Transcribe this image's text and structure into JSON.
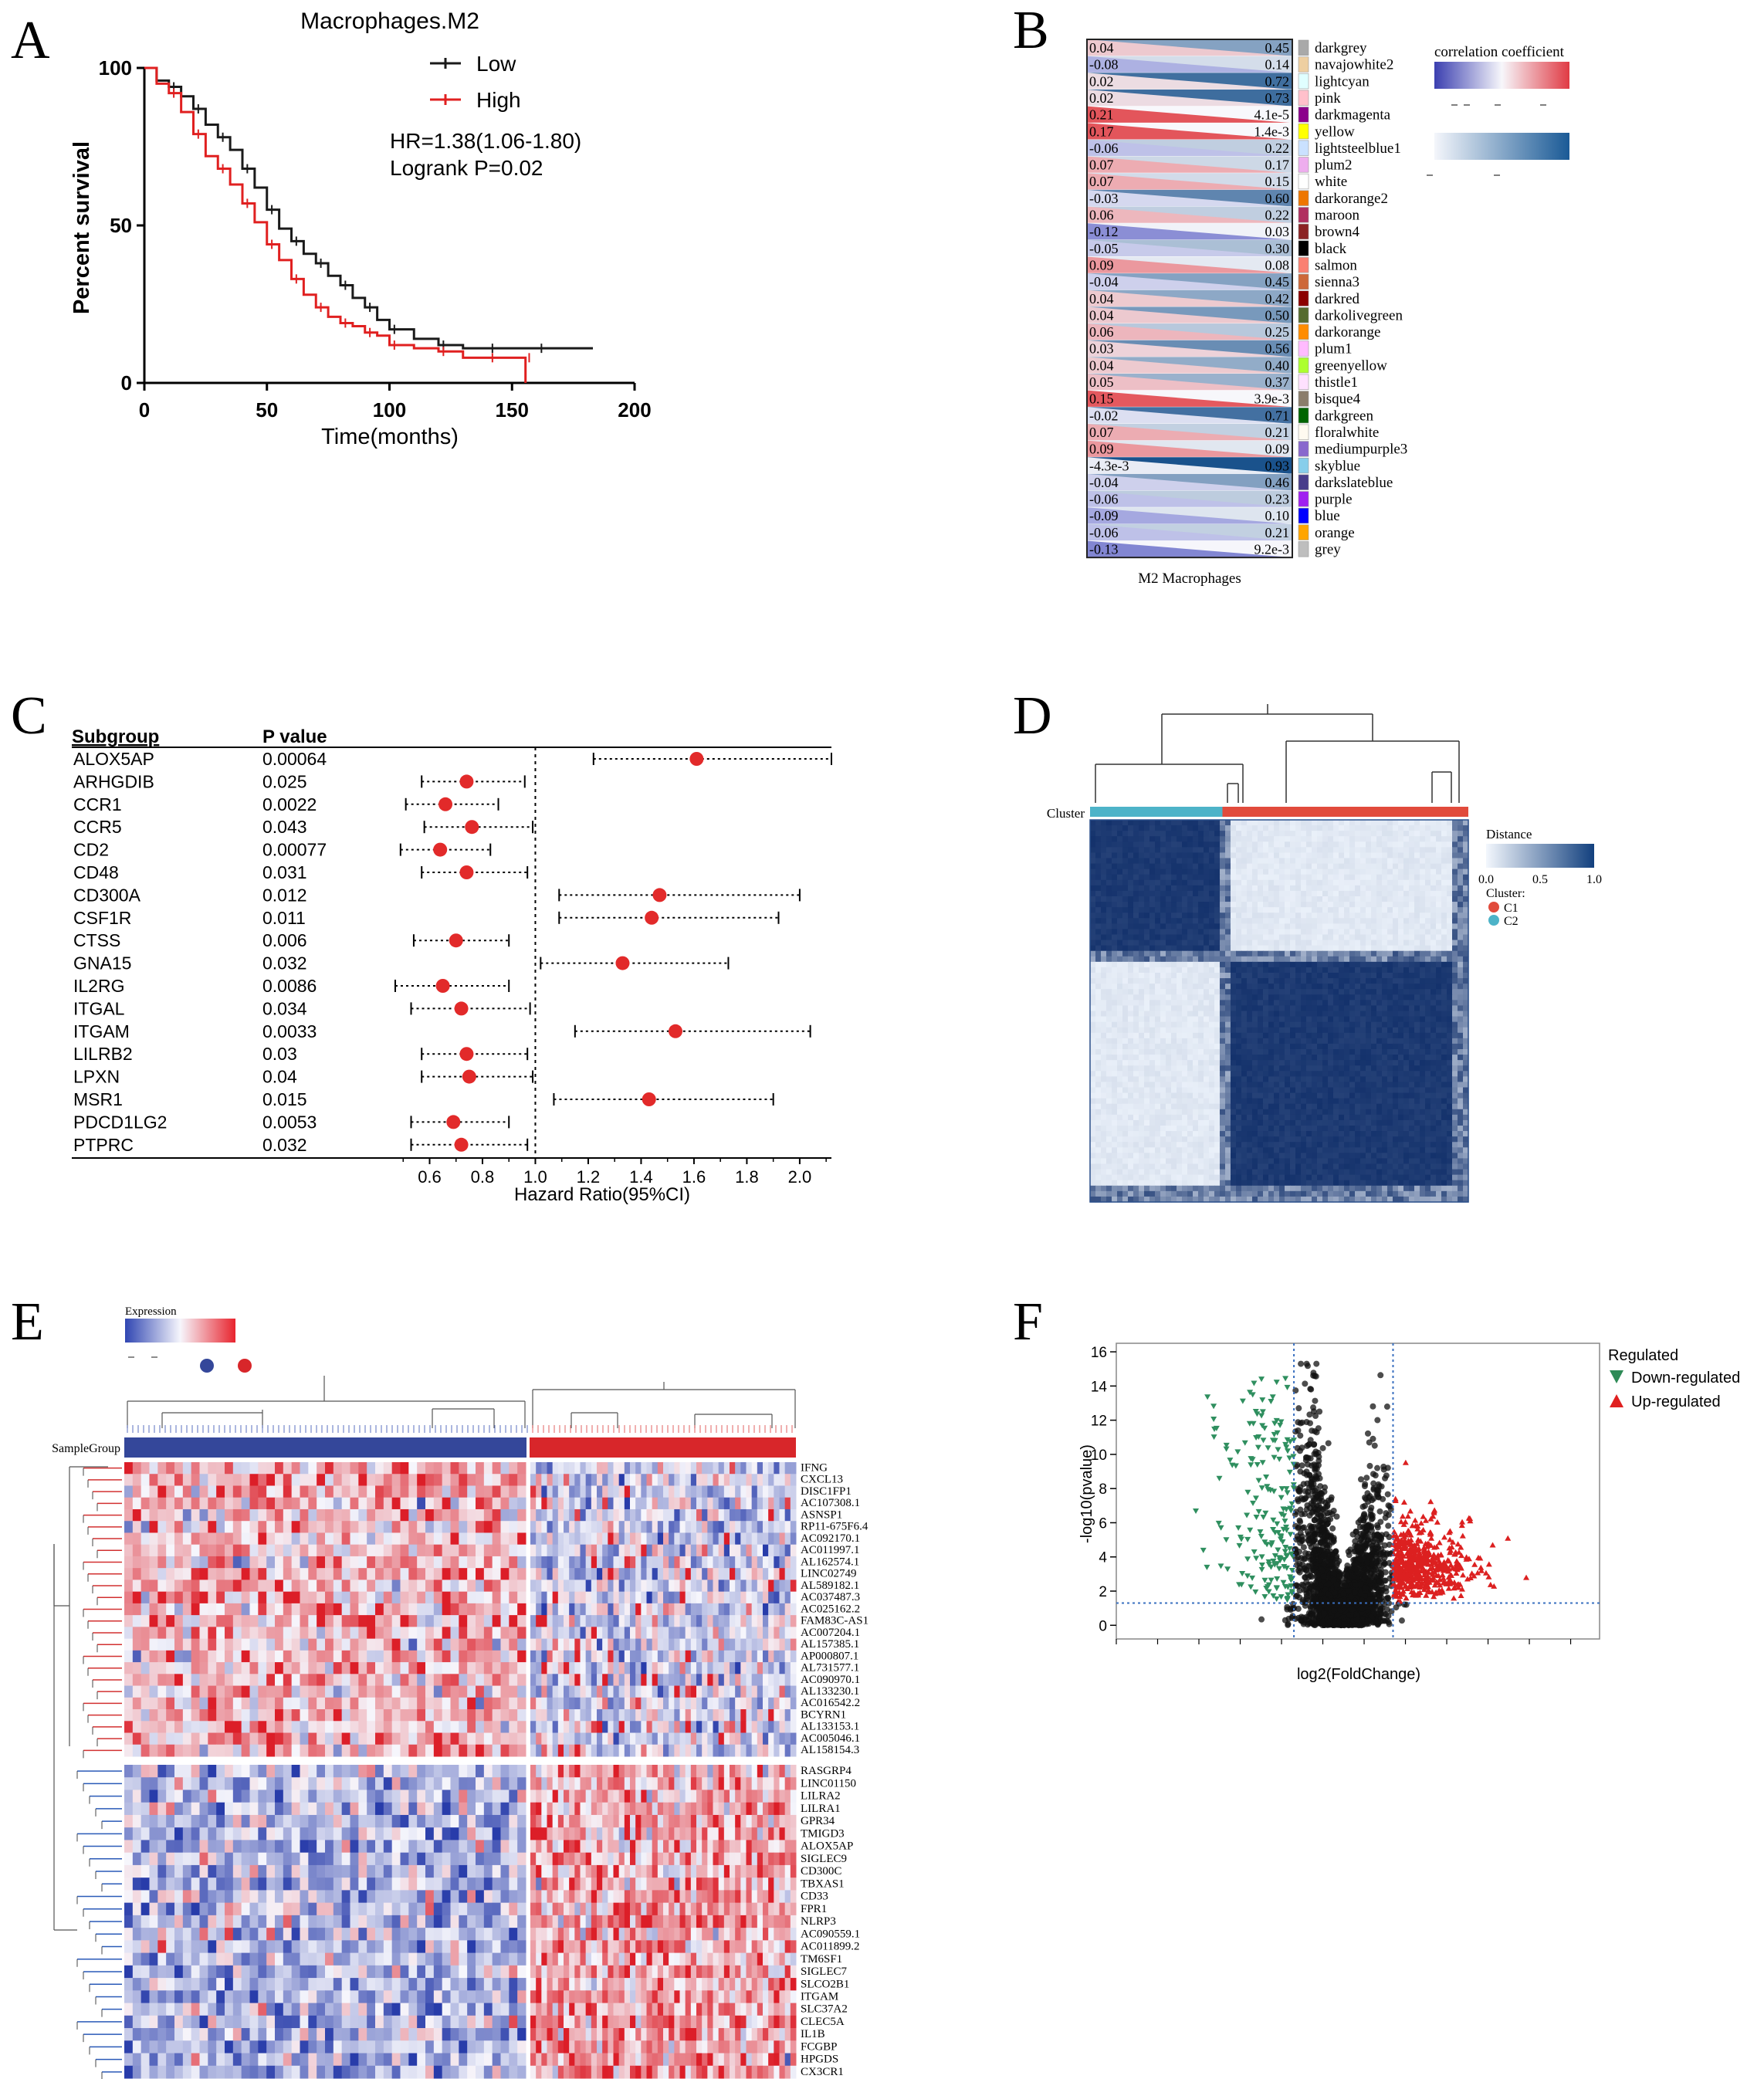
{
  "panel_letters": [
    "A",
    "B",
    "C",
    "D",
    "E",
    "F"
  ],
  "chart_data": [
    {
      "panel": "A",
      "type": "line",
      "title": "Macrophages.M2",
      "xlabel": "Time(months)",
      "ylabel": "Percent survival",
      "xlim": [
        0,
        200
      ],
      "ylim": [
        0,
        100
      ],
      "xticks": [
        0,
        50,
        100,
        150,
        200
      ],
      "yticks": [
        0,
        50,
        100
      ],
      "hr_text": "HR=1.38(1.06-1.80)",
      "logrank_text": "Logrank P=0.02",
      "series": [
        {
          "name": "Low",
          "color": "#1a1a1a",
          "x": [
            0,
            5,
            10,
            15,
            20,
            25,
            30,
            35,
            40,
            45,
            50,
            55,
            60,
            65,
            70,
            75,
            80,
            85,
            90,
            95,
            100,
            110,
            120,
            130,
            140,
            150,
            160,
            170,
            183
          ],
          "y": [
            100,
            96,
            94,
            91,
            87,
            82,
            78,
            74,
            68,
            62,
            55,
            49,
            45,
            41,
            38,
            34,
            31,
            27,
            24,
            20,
            17,
            14,
            12,
            11,
            11,
            11,
            11,
            11,
            11
          ]
        },
        {
          "name": "High",
          "color": "#e02020",
          "x": [
            0,
            5,
            10,
            15,
            20,
            25,
            30,
            35,
            40,
            45,
            50,
            55,
            60,
            65,
            70,
            75,
            80,
            85,
            90,
            95,
            100,
            110,
            120,
            130,
            140,
            150,
            155,
            155.5
          ],
          "y": [
            100,
            95,
            92,
            86,
            79,
            72,
            68,
            63,
            57,
            51,
            44,
            39,
            33,
            28,
            24,
            21,
            19,
            18,
            16,
            15,
            12,
            11,
            10,
            8,
            8,
            8,
            8,
            0
          ]
        }
      ]
    },
    {
      "panel": "B",
      "type": "table",
      "xlabel": "M2 Macrophages",
      "legend_title": "correlation coefficient",
      "modules": [
        "darkgrey",
        "navajowhite2",
        "lightcyan",
        "pink",
        "darkmagenta",
        "yellow",
        "lightsteelblue1",
        "plum2",
        "white",
        "darkorange2",
        "maroon",
        "brown4",
        "black",
        "salmon",
        "sienna3",
        "darkred",
        "darkolivegreen",
        "darkorange",
        "plum1",
        "greenyellow",
        "thistle1",
        "bisque4",
        "darkgreen",
        "floralwhite",
        "mediumpurple3",
        "skyblue",
        "darkslateblue",
        "purple",
        "blue",
        "orange",
        "grey"
      ],
      "module_colors": [
        "#a9a9a9",
        "#eecfa1",
        "#e0ffff",
        "#ffc0cb",
        "#8b008b",
        "#ffff00",
        "#cae1ff",
        "#eeaeee",
        "#ffffff",
        "#ee7600",
        "#b03060",
        "#8b2323",
        "#000000",
        "#fa8072",
        "#cd6839",
        "#8b0000",
        "#556b2f",
        "#ff8c00",
        "#ffbbff",
        "#adff2f",
        "#ffe1ff",
        "#8b7d6b",
        "#006400",
        "#fffaf0",
        "#8968cd",
        "#87ceeb",
        "#483d8b",
        "#a020f0",
        "#0000ff",
        "#ffa500",
        "#bebebe"
      ],
      "correlation_labels": [
        "0.04",
        "-0.08",
        "0.02",
        "0.02",
        "0.21",
        "0.17",
        "-0.06",
        "0.07",
        "0.07",
        "-0.03",
        "0.06",
        "-0.12",
        "-0.05",
        "0.09",
        "-0.04",
        "0.04",
        "0.04",
        "0.06",
        "0.03",
        "0.04",
        "0.05",
        "0.15",
        "-0.02",
        "0.07",
        "0.09",
        "-4.3e-3",
        "-0.04",
        "-0.06",
        "-0.09",
        "-0.06",
        "-0.13"
      ],
      "correlation_values": [
        0.04,
        -0.08,
        0.02,
        0.02,
        0.21,
        0.17,
        -0.06,
        0.07,
        0.07,
        -0.03,
        0.06,
        -0.12,
        -0.05,
        0.09,
        -0.04,
        0.04,
        0.04,
        0.06,
        0.03,
        0.04,
        0.05,
        0.15,
        -0.02,
        0.07,
        0.09,
        -0.0043,
        -0.04,
        -0.06,
        -0.09,
        -0.06,
        -0.13
      ],
      "p_labels": [
        "0.45",
        "0.14",
        "0.72",
        "0.73",
        "4.1e-5",
        "1.4e-3",
        "0.22",
        "0.17",
        "0.15",
        "0.60",
        "0.22",
        "0.03",
        "0.30",
        "0.08",
        "0.45",
        "0.42",
        "0.50",
        "0.25",
        "0.56",
        "0.40",
        "0.37",
        "3.9e-3",
        "0.71",
        "0.21",
        "0.09",
        "0.93",
        "0.46",
        "0.23",
        "0.10",
        "0.21",
        "9.2e-3"
      ],
      "p_values": [
        0.45,
        0.14,
        0.72,
        0.73,
        4.1e-05,
        0.0014,
        0.22,
        0.17,
        0.15,
        0.6,
        0.22,
        0.03,
        0.3,
        0.08,
        0.45,
        0.42,
        0.5,
        0.25,
        0.56,
        0.4,
        0.37,
        0.0039,
        0.71,
        0.21,
        0.09,
        0.93,
        0.46,
        0.23,
        0.1,
        0.21,
        0.0092
      ],
      "corr_range": [
        -0.2,
        0.2
      ]
    },
    {
      "panel": "C",
      "type": "scatter",
      "header_subgroup": "Subgroup",
      "header_p": "P value",
      "xlabel": "Hazard Ratio(95%CI)",
      "xlim": [
        0.4,
        2.12
      ],
      "xticks": [
        "0.6",
        "0.8",
        "1.0",
        "1.2",
        "1.4",
        "1.6",
        "1.8",
        "2.0"
      ],
      "reference": 1.0,
      "genes": [
        "ALOX5AP",
        "ARHGDIB",
        "CCR1",
        "CCR5",
        "CD2",
        "CD48",
        "CD300A",
        "CSF1R",
        "CTSS",
        "GNA15",
        "IL2RG",
        "ITGAL",
        "ITGAM",
        "LILRB2",
        "LPXN",
        "MSR1",
        "PDCD1LG2",
        "PTPRC"
      ],
      "p_values": [
        "0.00064",
        "0.025",
        "0.0022",
        "0.043",
        "0.00077",
        "0.031",
        "0.012",
        "0.011",
        "0.006",
        "0.032",
        "0.0086",
        "0.034",
        "0.0033",
        "0.03",
        "0.04",
        "0.015",
        "0.0053",
        "0.032"
      ],
      "hr": [
        1.61,
        0.74,
        0.66,
        0.76,
        0.64,
        0.74,
        1.47,
        1.44,
        0.7,
        1.33,
        0.65,
        0.72,
        1.53,
        0.74,
        0.75,
        1.43,
        0.69,
        0.72
      ],
      "ci_low": [
        1.22,
        0.57,
        0.51,
        0.58,
        0.49,
        0.57,
        1.09,
        1.09,
        0.54,
        1.02,
        0.47,
        0.53,
        1.15,
        0.57,
        0.57,
        1.07,
        0.53,
        0.53
      ],
      "ci_high": [
        2.12,
        0.96,
        0.86,
        0.99,
        0.83,
        0.97,
        2.0,
        1.92,
        0.9,
        1.73,
        0.9,
        0.98,
        2.04,
        0.97,
        0.99,
        1.9,
        0.9,
        0.97
      ]
    },
    {
      "panel": "D",
      "type": "heatmap",
      "legend_title": "Distance",
      "scale_labels": [
        "0.0",
        "0.5",
        "1.0"
      ],
      "cluster_title": "Cluster:",
      "cluster_row_label": "Cluster",
      "clusters": [
        {
          "name": "C1",
          "color": "#e14b3c"
        },
        {
          "name": "C2",
          "color": "#4db3c8"
        }
      ],
      "block_split_fraction": 0.35
    },
    {
      "panel": "E",
      "type": "heatmap",
      "legend_title": "Expression",
      "sample_group_label": "SampleGroup",
      "group_colors": [
        "#34479a",
        "#d8262a"
      ],
      "group_split_fraction": 0.5,
      "up_genes": [
        "IFNG",
        "CXCL13",
        "DISC1FP1",
        "AC107308.1",
        "ASNSP1",
        "RP11-675F6.4",
        "AC092170.1",
        "AC011997.1",
        "AL162574.1",
        "LINC02749",
        "AL589182.1",
        "AC037487.3",
        "AC025162.2",
        "FAM83C-AS1",
        "AC007204.1",
        "AL157385.1",
        "AP000807.1",
        "AL731577.1",
        "AC090970.1",
        "AL133230.1",
        "AC016542.2",
        "BCYRN1",
        "AL133153.1",
        "AC005046.1",
        "AL158154.3"
      ],
      "down_genes": [
        "RASGRP4",
        "LINC01150",
        "LILRA2",
        "LILRA1",
        "GPR34",
        "TMIGD3",
        "ALOX5AP",
        "SIGLEC9",
        "CD300C",
        "TBXAS1",
        "CD33",
        "FPR1",
        "NLRP3",
        "AC090559.1",
        "AC011899.2",
        "TM6SF1",
        "SIGLEC7",
        "SLCO2B1",
        "ITGAM",
        "SLC37A2",
        "CLEC5A",
        "IL1B",
        "FCGBP",
        "HPGDS",
        "CX3CR1"
      ]
    },
    {
      "panel": "F",
      "type": "scatter",
      "xlabel": "log2(FoldChange)",
      "ylabel": "-log10(pvalue)",
      "yticks": [
        0,
        2,
        4,
        6,
        8,
        10,
        12,
        14,
        16
      ],
      "ylim": [
        -0.8,
        16.5
      ],
      "xlim": [
        -5.5,
        6.2
      ],
      "fc_cutoff": [
        -1.2,
        1.2
      ],
      "p_cutoff": 1.3,
      "legend_title": "Regulated",
      "legend_entries": [
        {
          "name": "Down-regulated",
          "color": "#2e8b57"
        },
        {
          "name": "Up-regulated",
          "color": "#e02020"
        }
      ]
    }
  ]
}
